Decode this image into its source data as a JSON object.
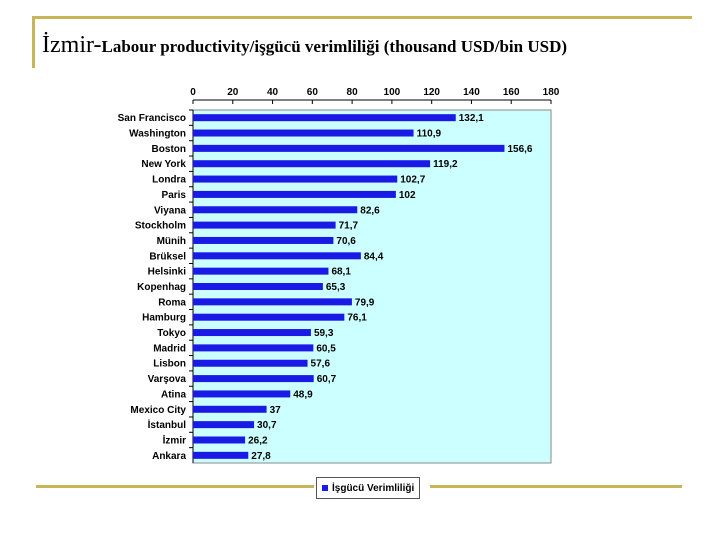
{
  "slide": {
    "title_city": "İzmir-",
    "title_rest": "Labour productivity/işgücü verimliliği (thousand USD/bin USD)"
  },
  "colors": {
    "bar": "#1a1ae6",
    "plot_bg": "#ccffff",
    "accent_line": "#c8b45a"
  },
  "chart_data": {
    "type": "bar",
    "orientation": "horizontal",
    "categories": [
      "San Francisco",
      "Washington",
      "Boston",
      "New York",
      "Londra",
      "Paris",
      "Viyana",
      "Stockholm",
      "Münih",
      "Brüksel",
      "Helsinki",
      "Kopenhag",
      "Roma",
      "Hamburg",
      "Tokyo",
      "Madrid",
      "Lisbon",
      "Varşova",
      "Atina",
      "Mexico City",
      "İstanbul",
      "İzmir",
      "Ankara"
    ],
    "values": [
      132.1,
      110.9,
      156.6,
      119.2,
      102.7,
      102,
      82.6,
      71.7,
      70.6,
      84.4,
      68.1,
      65.3,
      79.9,
      76.1,
      59.3,
      60.5,
      57.6,
      60.7,
      48.9,
      37,
      30.7,
      26.2,
      27.8
    ],
    "value_labels": [
      "132,1",
      "110,9",
      "156,6",
      "119,2",
      "102,7",
      "102",
      "82,6",
      "71,7",
      "70,6",
      "84,4",
      "68,1",
      "65,3",
      "79,9",
      "76,1",
      "59,3",
      "60,5",
      "57,6",
      "60,7",
      "48,9",
      "37",
      "30,7",
      "26,2",
      "27,8"
    ],
    "xlim": [
      0,
      180
    ],
    "xticks": [
      "0",
      "20",
      "40",
      "60",
      "80",
      "100",
      "120",
      "140",
      "160",
      "180"
    ],
    "xtick_values": [
      0,
      20,
      40,
      60,
      80,
      100,
      120,
      140,
      160,
      180
    ],
    "legend": "İşgücü Verimliliği",
    "legend_position": "bottom",
    "grid": false
  }
}
